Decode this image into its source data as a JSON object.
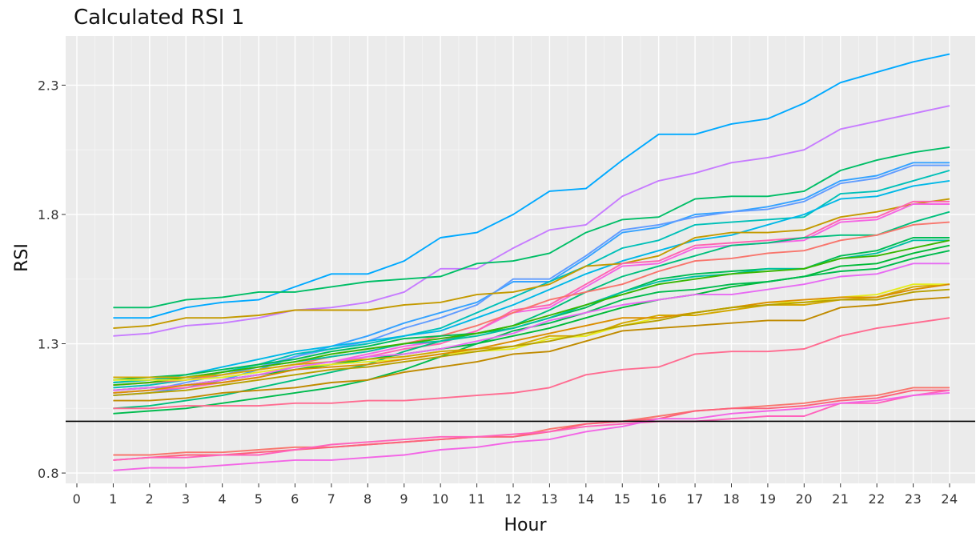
{
  "chart_data": {
    "type": "line",
    "title": "Calculated RSI 1",
    "xlabel": "Hour",
    "ylabel": "RSI",
    "x": [
      1,
      2,
      3,
      4,
      5,
      6,
      7,
      8,
      9,
      10,
      11,
      12,
      13,
      14,
      15,
      16,
      17,
      18,
      19,
      20,
      21,
      22,
      23,
      24
    ],
    "xlim": [
      0,
      24
    ],
    "ylim": [
      0.76,
      2.49
    ],
    "x_ticks": [
      0,
      1,
      2,
      3,
      4,
      5,
      6,
      7,
      8,
      9,
      10,
      11,
      12,
      13,
      14,
      15,
      16,
      17,
      18,
      19,
      20,
      21,
      22,
      23,
      24
    ],
    "y_ticks": [
      0.8,
      1.3,
      1.8,
      2.3
    ],
    "y_tick_labels": [
      "0.8",
      "1.3",
      "1.8",
      "2.3"
    ],
    "reference_line": {
      "y": 1.0,
      "color": "#000000"
    },
    "grid": true,
    "background": "#ebebeb",
    "legend": "none",
    "series": [
      {
        "color": "#00a9ff",
        "values": [
          1.4,
          1.4,
          1.44,
          1.46,
          1.47,
          1.52,
          1.57,
          1.57,
          1.62,
          1.71,
          1.73,
          1.8,
          1.89,
          1.9,
          2.01,
          2.11,
          2.11,
          2.15,
          2.17,
          2.23,
          2.31,
          2.35,
          2.39,
          2.42
        ]
      },
      {
        "color": "#c77cff",
        "values": [
          1.33,
          1.34,
          1.37,
          1.38,
          1.4,
          1.43,
          1.44,
          1.46,
          1.5,
          1.59,
          1.59,
          1.67,
          1.74,
          1.76,
          1.87,
          1.93,
          1.96,
          2.0,
          2.02,
          2.05,
          2.13,
          2.16,
          2.19,
          2.22
        ]
      },
      {
        "color": "#00be67",
        "values": [
          1.44,
          1.44,
          1.47,
          1.48,
          1.5,
          1.5,
          1.52,
          1.54,
          1.55,
          1.56,
          1.61,
          1.62,
          1.65,
          1.73,
          1.78,
          1.79,
          1.86,
          1.87,
          1.87,
          1.89,
          1.97,
          2.01,
          2.04,
          2.06
        ]
      },
      {
        "color": "#35a2ff",
        "values": [
          1.1,
          1.11,
          1.13,
          1.16,
          1.2,
          1.25,
          1.29,
          1.33,
          1.38,
          1.42,
          1.46,
          1.54,
          1.54,
          1.63,
          1.73,
          1.75,
          1.8,
          1.81,
          1.83,
          1.86,
          1.93,
          1.95,
          2.0,
          2.0
        ]
      },
      {
        "color": "#619cff",
        "values": [
          1.11,
          1.12,
          1.15,
          1.18,
          1.21,
          1.25,
          1.28,
          1.31,
          1.36,
          1.4,
          1.45,
          1.55,
          1.55,
          1.64,
          1.74,
          1.76,
          1.79,
          1.81,
          1.82,
          1.85,
          1.92,
          1.94,
          1.99,
          1.99
        ]
      },
      {
        "color": "#00c0b8",
        "values": [
          1.13,
          1.14,
          1.16,
          1.19,
          1.22,
          1.26,
          1.28,
          1.3,
          1.33,
          1.36,
          1.42,
          1.48,
          1.54,
          1.6,
          1.67,
          1.7,
          1.76,
          1.77,
          1.78,
          1.79,
          1.88,
          1.89,
          1.93,
          1.97
        ]
      },
      {
        "color": "#00b8e7",
        "values": [
          1.15,
          1.16,
          1.18,
          1.21,
          1.24,
          1.27,
          1.29,
          1.31,
          1.33,
          1.35,
          1.4,
          1.45,
          1.51,
          1.57,
          1.62,
          1.66,
          1.7,
          1.72,
          1.76,
          1.8,
          1.86,
          1.87,
          1.91,
          1.93
        ]
      },
      {
        "color": "#c49a00",
        "values": [
          1.36,
          1.37,
          1.4,
          1.4,
          1.41,
          1.43,
          1.43,
          1.43,
          1.45,
          1.46,
          1.49,
          1.5,
          1.53,
          1.6,
          1.61,
          1.64,
          1.71,
          1.73,
          1.73,
          1.74,
          1.79,
          1.81,
          1.84,
          1.86
        ]
      },
      {
        "color": "#f564e3",
        "values": [
          1.12,
          1.13,
          1.14,
          1.16,
          1.18,
          1.21,
          1.23,
          1.26,
          1.29,
          1.31,
          1.35,
          1.42,
          1.44,
          1.52,
          1.6,
          1.61,
          1.67,
          1.68,
          1.69,
          1.7,
          1.77,
          1.78,
          1.84,
          1.84
        ]
      },
      {
        "color": "#ff64b0",
        "values": [
          1.11,
          1.12,
          1.13,
          1.15,
          1.17,
          1.2,
          1.22,
          1.25,
          1.28,
          1.3,
          1.35,
          1.43,
          1.45,
          1.53,
          1.61,
          1.62,
          1.68,
          1.69,
          1.7,
          1.71,
          1.78,
          1.79,
          1.85,
          1.85
        ]
      },
      {
        "color": "#00bf7d",
        "values": [
          1.05,
          1.06,
          1.08,
          1.1,
          1.13,
          1.16,
          1.19,
          1.22,
          1.27,
          1.31,
          1.34,
          1.37,
          1.43,
          1.5,
          1.56,
          1.6,
          1.64,
          1.68,
          1.69,
          1.71,
          1.72,
          1.72,
          1.77,
          1.81
        ]
      },
      {
        "color": "#f8766d",
        "values": [
          1.14,
          1.15,
          1.16,
          1.18,
          1.2,
          1.22,
          1.25,
          1.27,
          1.3,
          1.33,
          1.37,
          1.42,
          1.47,
          1.5,
          1.53,
          1.58,
          1.62,
          1.63,
          1.65,
          1.66,
          1.7,
          1.72,
          1.76,
          1.77
        ]
      },
      {
        "color": "#00bc56",
        "values": [
          1.16,
          1.17,
          1.18,
          1.2,
          1.22,
          1.24,
          1.27,
          1.29,
          1.32,
          1.33,
          1.34,
          1.36,
          1.4,
          1.44,
          1.5,
          1.55,
          1.57,
          1.58,
          1.59,
          1.59,
          1.64,
          1.66,
          1.71,
          1.71
        ]
      },
      {
        "color": "#00c1a3",
        "values": [
          1.15,
          1.16,
          1.17,
          1.19,
          1.21,
          1.23,
          1.25,
          1.27,
          1.3,
          1.31,
          1.33,
          1.36,
          1.4,
          1.45,
          1.5,
          1.54,
          1.56,
          1.57,
          1.59,
          1.59,
          1.63,
          1.65,
          1.7,
          1.7
        ]
      },
      {
        "color": "#39b600",
        "values": [
          1.14,
          1.15,
          1.17,
          1.19,
          1.21,
          1.23,
          1.26,
          1.28,
          1.3,
          1.32,
          1.34,
          1.37,
          1.41,
          1.45,
          1.49,
          1.53,
          1.55,
          1.57,
          1.58,
          1.59,
          1.63,
          1.64,
          1.67,
          1.7
        ]
      },
      {
        "color": "#00ba38",
        "values": [
          1.12,
          1.13,
          1.14,
          1.16,
          1.18,
          1.2,
          1.22,
          1.24,
          1.26,
          1.28,
          1.3,
          1.33,
          1.36,
          1.4,
          1.44,
          1.47,
          1.49,
          1.52,
          1.54,
          1.56,
          1.6,
          1.61,
          1.65,
          1.68
        ]
      },
      {
        "color": "#00bb4e",
        "values": [
          1.03,
          1.04,
          1.05,
          1.07,
          1.09,
          1.11,
          1.13,
          1.16,
          1.2,
          1.25,
          1.3,
          1.35,
          1.38,
          1.42,
          1.47,
          1.5,
          1.51,
          1.53,
          1.54,
          1.56,
          1.58,
          1.59,
          1.63,
          1.66
        ]
      },
      {
        "color": "#d3a800",
        "values": [
          1.17,
          1.17,
          1.17,
          1.18,
          1.2,
          1.22,
          1.23,
          1.24,
          1.25,
          1.27,
          1.28,
          1.29,
          1.33,
          1.33,
          1.38,
          1.41,
          1.41,
          1.43,
          1.45,
          1.45,
          1.47,
          1.48,
          1.52,
          1.53
        ]
      },
      {
        "color": "#e5ec20",
        "values": [
          1.16,
          1.16,
          1.16,
          1.17,
          1.19,
          1.21,
          1.22,
          1.23,
          1.24,
          1.26,
          1.27,
          1.28,
          1.32,
          1.33,
          1.37,
          1.4,
          1.42,
          1.44,
          1.46,
          1.46,
          1.48,
          1.49,
          1.53,
          1.53
        ]
      },
      {
        "color": "#e76bf3",
        "values": [
          1.12,
          1.13,
          1.14,
          1.16,
          1.18,
          1.21,
          1.23,
          1.25,
          1.26,
          1.28,
          1.31,
          1.34,
          1.39,
          1.42,
          1.45,
          1.47,
          1.49,
          1.49,
          1.51,
          1.53,
          1.56,
          1.57,
          1.61,
          1.61
        ]
      },
      {
        "color": "#db8e00",
        "values": [
          1.11,
          1.12,
          1.14,
          1.15,
          1.17,
          1.2,
          1.21,
          1.22,
          1.24,
          1.26,
          1.28,
          1.31,
          1.34,
          1.37,
          1.4,
          1.4,
          1.42,
          1.44,
          1.46,
          1.47,
          1.48,
          1.48,
          1.51,
          1.53
        ]
      },
      {
        "color": "#b7a000",
        "values": [
          1.1,
          1.11,
          1.12,
          1.14,
          1.16,
          1.18,
          1.2,
          1.21,
          1.23,
          1.25,
          1.27,
          1.29,
          1.31,
          1.34,
          1.37,
          1.39,
          1.42,
          1.44,
          1.45,
          1.46,
          1.47,
          1.47,
          1.5,
          1.51
        ]
      },
      {
        "color": "#c08b00",
        "values": [
          1.08,
          1.08,
          1.09,
          1.11,
          1.12,
          1.13,
          1.15,
          1.16,
          1.19,
          1.21,
          1.23,
          1.26,
          1.27,
          1.31,
          1.35,
          1.36,
          1.37,
          1.38,
          1.39,
          1.39,
          1.44,
          1.45,
          1.47,
          1.48
        ]
      },
      {
        "color": "#ff6c91",
        "values": [
          1.05,
          1.05,
          1.06,
          1.06,
          1.06,
          1.07,
          1.07,
          1.08,
          1.08,
          1.09,
          1.1,
          1.11,
          1.13,
          1.18,
          1.2,
          1.21,
          1.26,
          1.27,
          1.27,
          1.28,
          1.33,
          1.36,
          1.38,
          1.4
        ]
      },
      {
        "color": "#f8766d",
        "values": [
          0.87,
          0.87,
          0.88,
          0.88,
          0.89,
          0.9,
          0.9,
          0.91,
          0.92,
          0.93,
          0.94,
          0.94,
          0.97,
          0.99,
          1.0,
          1.02,
          1.04,
          1.05,
          1.06,
          1.07,
          1.09,
          1.1,
          1.13,
          1.13
        ]
      },
      {
        "color": "#fd617a",
        "values": [
          0.85,
          0.86,
          0.87,
          0.87,
          0.88,
          0.89,
          0.9,
          0.91,
          0.92,
          0.93,
          0.94,
          0.94,
          0.96,
          0.99,
          1.0,
          1.01,
          1.04,
          1.05,
          1.05,
          1.06,
          1.08,
          1.09,
          1.12,
          1.12
        ]
      },
      {
        "color": "#ff62bc",
        "values": [
          0.85,
          0.86,
          0.86,
          0.87,
          0.87,
          0.89,
          0.91,
          0.92,
          0.93,
          0.94,
          0.94,
          0.95,
          0.96,
          0.98,
          0.99,
          1.0,
          1.0,
          1.01,
          1.02,
          1.02,
          1.07,
          1.07,
          1.1,
          1.12
        ]
      },
      {
        "color": "#f365e6",
        "values": [
          0.81,
          0.82,
          0.82,
          0.83,
          0.84,
          0.85,
          0.85,
          0.86,
          0.87,
          0.89,
          0.9,
          0.92,
          0.93,
          0.96,
          0.98,
          1.01,
          1.01,
          1.03,
          1.04,
          1.05,
          1.07,
          1.08,
          1.1,
          1.11
        ]
      }
    ]
  }
}
